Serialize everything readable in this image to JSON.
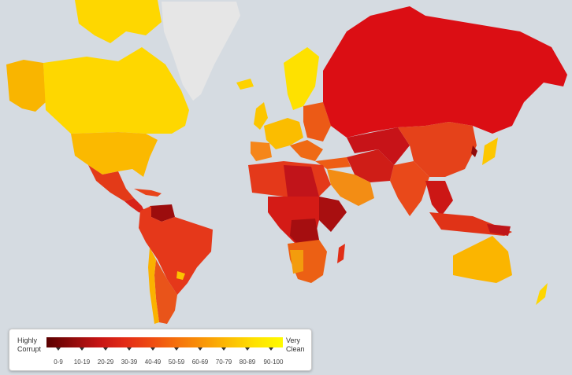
{
  "map": {
    "background_color": "#d5dbe1",
    "color_scale": [
      "#5a0000",
      "#8f0b0b",
      "#c51414",
      "#e22b17",
      "#ee4a12",
      "#f5700c",
      "#f99507",
      "#fcbc04",
      "#fee101",
      "#fffb00"
    ],
    "no_data_color": "#e6e6e6"
  },
  "legend": {
    "left_label_line1": "Highly",
    "left_label_line2": "Corrupt",
    "right_label_line1": "Very",
    "right_label_line2": "Clean",
    "ranges": [
      "0-9",
      "10-19",
      "20-29",
      "30-39",
      "40-49",
      "50-59",
      "60-69",
      "70-79",
      "80-89",
      "90-100"
    ]
  }
}
